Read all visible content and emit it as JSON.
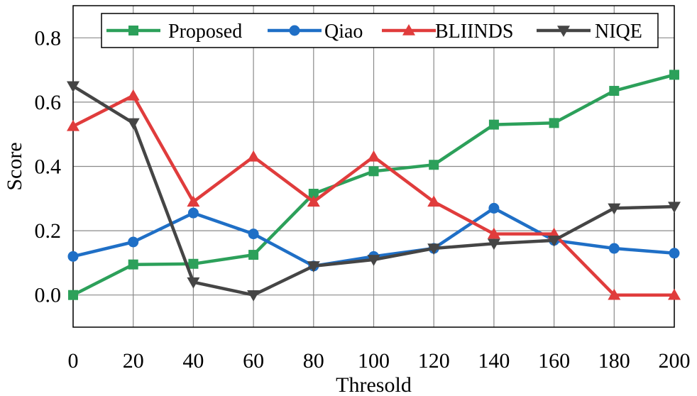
{
  "chart_data": {
    "type": "line",
    "title": "",
    "xlabel": "Thresold",
    "ylabel": "Score",
    "xlim": [
      0,
      200
    ],
    "ylim": [
      -0.1,
      0.9
    ],
    "x_ticks": [
      0,
      20,
      40,
      60,
      80,
      100,
      120,
      140,
      160,
      180,
      200
    ],
    "x_tick_labels": [
      "0",
      "20",
      "40",
      "60",
      "80",
      "100",
      "120",
      "140",
      "160",
      "180",
      "200"
    ],
    "y_ticks": [
      0.0,
      0.2,
      0.4,
      0.6,
      0.8
    ],
    "y_tick_labels": [
      "0.0",
      "0.2",
      "0.4",
      "0.6",
      "0.8"
    ],
    "grid": true,
    "legend_position": "top-right",
    "x": [
      0,
      20,
      40,
      60,
      80,
      100,
      120,
      140,
      160,
      180,
      200
    ],
    "series": [
      {
        "name": "Proposed",
        "color": "#2ca05a",
        "marker": "square",
        "values": [
          0.0,
          0.095,
          0.097,
          0.125,
          0.315,
          0.385,
          0.405,
          0.53,
          0.535,
          0.635,
          0.685
        ]
      },
      {
        "name": "Qiao",
        "color": "#1f6fc6",
        "marker": "circle",
        "values": [
          0.12,
          0.165,
          0.255,
          0.19,
          0.09,
          0.12,
          0.145,
          0.27,
          0.17,
          0.145,
          0.13
        ]
      },
      {
        "name": "BLIINDS",
        "color": "#e03c3c",
        "marker": "triangle-up",
        "values": [
          0.525,
          0.62,
          0.29,
          0.43,
          0.29,
          0.43,
          0.29,
          0.19,
          0.19,
          0.0,
          0.0
        ]
      },
      {
        "name": "NIQE",
        "color": "#454545",
        "marker": "triangle-down",
        "values": [
          0.65,
          0.535,
          0.04,
          0.0,
          0.09,
          0.11,
          0.145,
          0.16,
          0.17,
          0.27,
          0.275
        ]
      }
    ]
  }
}
